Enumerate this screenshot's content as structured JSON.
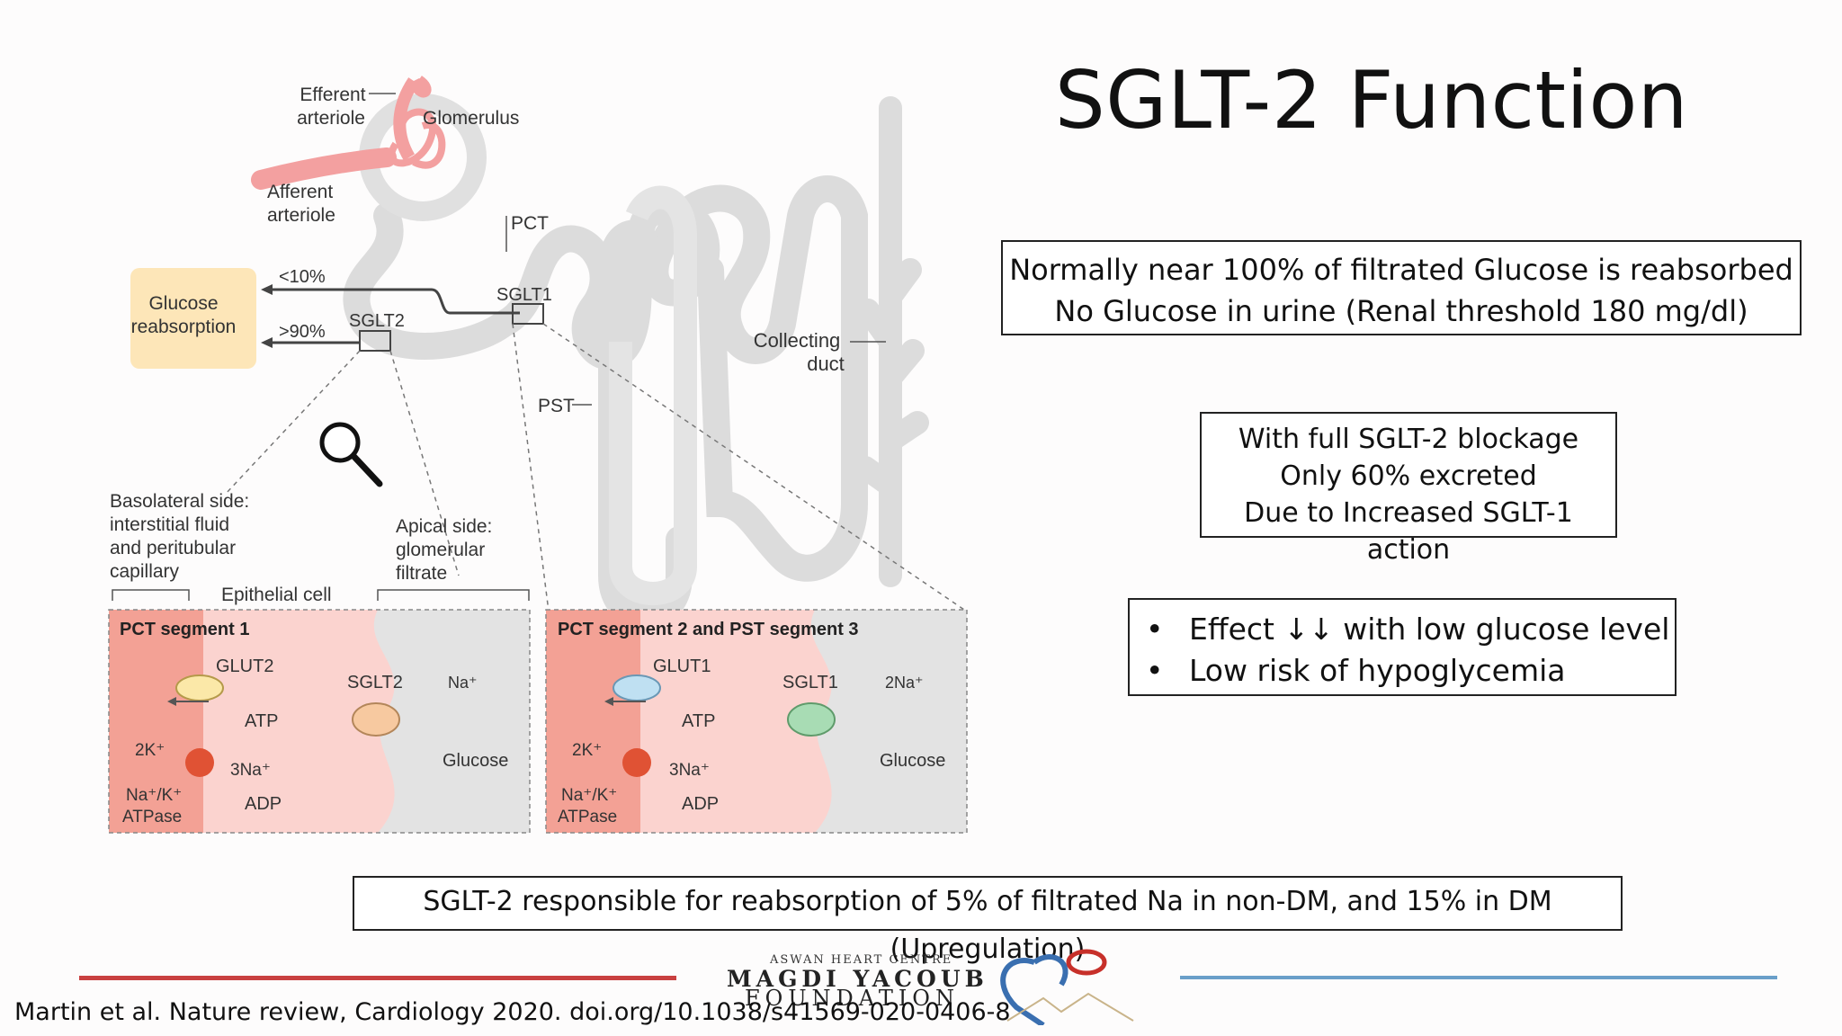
{
  "slide": {
    "title": "SGLT-2 Function",
    "box1": {
      "line1": "Normally near 100%  of filtrated Glucose is reabsorbed",
      "line2": "No Glucose in urine (Renal threshold 180 mg/dl)"
    },
    "box2": {
      "line1": "With full SGLT-2 blockage",
      "line2": "Only 60% excreted",
      "line3": "Due to Increased SGLT-1 action"
    },
    "box3": {
      "bullet1": "Effect ↓↓ with low glucose level",
      "bullet2": "Low risk of hypoglycemia"
    },
    "box4": "SGLT-2 responsible for reabsorption of 5% of filtrated Na in non-DM, and 15% in DM (Upregulation)",
    "citation": "Martin et al. Nature review, Cardiology 2020. doi.org/10.1038/s41569-020-0406-8"
  },
  "logo": {
    "small": "ASWAN HEART CENTRE",
    "big": "MAGDI YACOUB",
    "big2": "FOUNDATION"
  },
  "diagram": {
    "efferent1": "Efferent",
    "efferent2": "arteriole",
    "glomerulus": "Glomerulus",
    "afferent1": "Afferent",
    "afferent2": "arteriole",
    "pct": "PCT",
    "lt10": "<10%",
    "gt90": ">90%",
    "glucose1": "Glucose",
    "glucose2": "reabsorption",
    "sglt2": "SGLT2",
    "sglt1": "SGLT1",
    "collecting1": "Collecting",
    "collecting2": "duct",
    "pst": "PST",
    "baso1": "Basolateral side:",
    "baso2": "interstitial fluid",
    "baso3": "and peritubular",
    "baso4": "capillary",
    "apical1": "Apical side:",
    "apical2": "glomerular",
    "apical3": "filtrate",
    "epithelial": "Epithelial cell",
    "seg1": "PCT segment 1",
    "seg2": "PCT segment 2 and PST segment 3",
    "glut2": "GLUT2",
    "glut1": "GLUT1",
    "atp": "ATP",
    "adp": "ADP",
    "k2": "2K⁺",
    "na3": "3Na⁺",
    "na": "Na⁺",
    "na2": "2Na⁺",
    "glucose": "Glucose",
    "atpase1": "Na⁺/K⁺",
    "atpase2": "ATPase"
  }
}
